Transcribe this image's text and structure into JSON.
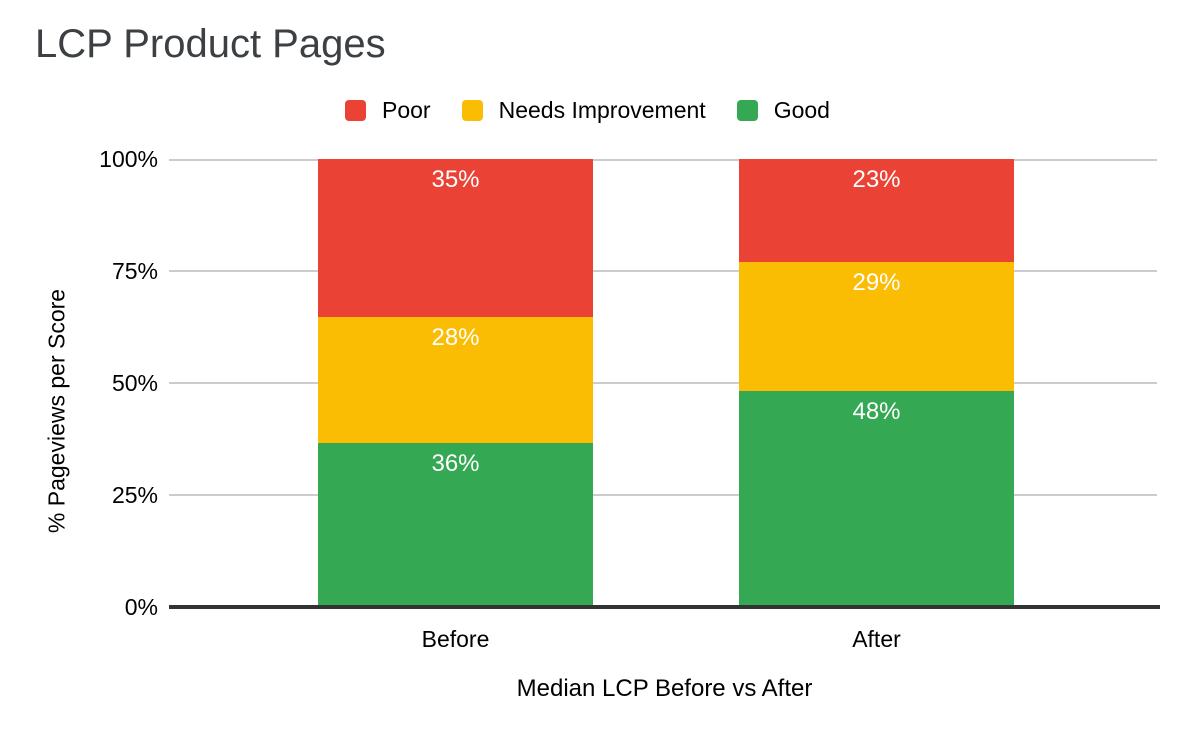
{
  "title": {
    "text": "LCP Product Pages",
    "color": "#3c4043"
  },
  "legend": {
    "position": "top",
    "items": [
      {
        "label": "Poor",
        "color": "#EA4335"
      },
      {
        "label": "Needs Improvement",
        "color": "#FBBC04"
      },
      {
        "label": "Good",
        "color": "#34A853"
      }
    ]
  },
  "chart_data": {
    "type": "bar",
    "variant": "stacked-column-percent",
    "title": "LCP Product Pages",
    "xlabel": "Median LCP Before vs After",
    "ylabel": "% Pageviews per Score",
    "categories": [
      "Before",
      "After"
    ],
    "series": [
      {
        "name": "Poor",
        "color": "#EA4335",
        "values": [
          35,
          23
        ]
      },
      {
        "name": "Needs Improvement",
        "color": "#FBBC04",
        "values": [
          28,
          29
        ]
      },
      {
        "name": "Good",
        "color": "#34A853",
        "values": [
          36,
          48
        ]
      }
    ],
    "labels": [
      [
        "35%",
        "28%",
        "36%"
      ],
      [
        "23%",
        "29%",
        "48%"
      ]
    ],
    "y_ticks": [
      "100%",
      "75%",
      "50%",
      "25%",
      "0%"
    ],
    "ylim": [
      0,
      100
    ],
    "grid": true,
    "legend_position": "top",
    "gridline_color": "#cccccc",
    "axis_line_color": "#333333",
    "data_label_color": "#ffffff"
  }
}
